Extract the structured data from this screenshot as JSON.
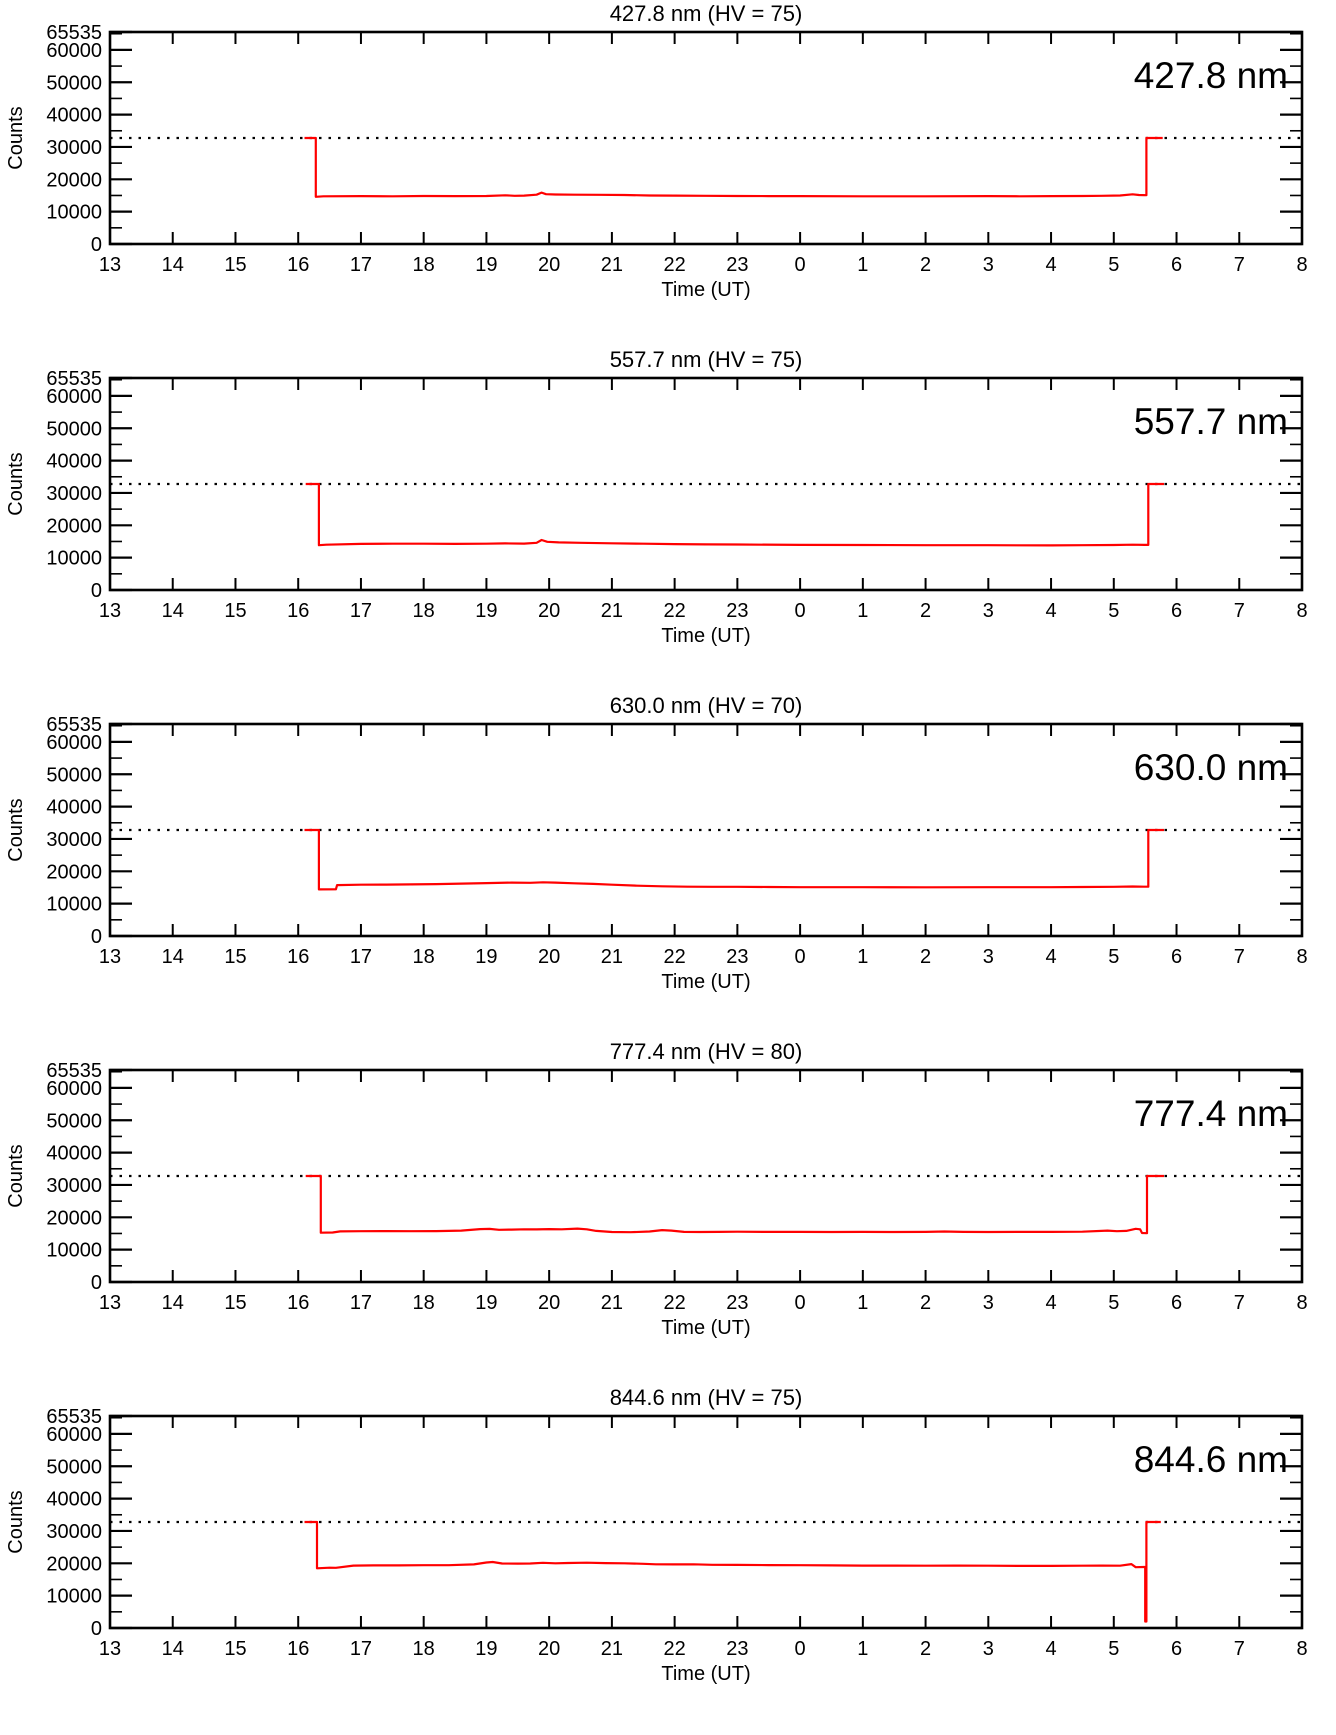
{
  "figure": {
    "ylabel": "Counts",
    "xlabel": "Time (UT)",
    "ylim": [
      0,
      65535
    ],
    "y_major_ticks": [
      0,
      10000,
      20000,
      30000,
      40000,
      50000,
      60000,
      65535
    ],
    "y_major_tick_labels": [
      "0",
      "10000",
      "20000",
      "30000",
      "40000",
      "50000",
      "60000",
      "65535"
    ],
    "y_minor_step": 5000,
    "x_hours": [
      13,
      14,
      15,
      16,
      17,
      18,
      19,
      20,
      21,
      22,
      23,
      24,
      25,
      26,
      27,
      28,
      29,
      30,
      31,
      32
    ],
    "x_tick_labels": [
      "13",
      "14",
      "15",
      "16",
      "17",
      "18",
      "19",
      "20",
      "21",
      "22",
      "23",
      "0",
      "1",
      "2",
      "3",
      "4",
      "5",
      "6",
      "7",
      "8"
    ],
    "dashed_line_y": 32768,
    "line_color": "#ff0000",
    "axis_color": "#000000",
    "grid": false,
    "legend": "none"
  },
  "chart_data": [
    {
      "type": "line",
      "title": "427.8 nm (HV = 75)",
      "wavelength_label": "427.8 nm",
      "hv": 75,
      "xlabel": "Time (UT)",
      "ylabel": "Counts",
      "ylim": [
        0,
        65535
      ],
      "dashed_line_y": 32768,
      "series": [
        {
          "name": "counts",
          "color": "#ff0000",
          "points": [
            [
              16.1,
              32768
            ],
            [
              16.28,
              32768
            ],
            [
              16.28,
              14600
            ],
            [
              16.4,
              14750
            ],
            [
              17.0,
              14800
            ],
            [
              17.5,
              14750
            ],
            [
              18.0,
              14850
            ],
            [
              18.5,
              14800
            ],
            [
              19.0,
              14850
            ],
            [
              19.3,
              15050
            ],
            [
              19.45,
              14900
            ],
            [
              19.6,
              14950
            ],
            [
              19.8,
              15250
            ],
            [
              19.88,
              15900
            ],
            [
              19.95,
              15400
            ],
            [
              20.1,
              15300
            ],
            [
              20.4,
              15250
            ],
            [
              20.8,
              15200
            ],
            [
              21.2,
              15150
            ],
            [
              21.6,
              15000
            ],
            [
              22.0,
              14950
            ],
            [
              22.5,
              14900
            ],
            [
              23.0,
              14850
            ],
            [
              23.5,
              14800
            ],
            [
              24.0,
              14800
            ],
            [
              25.0,
              14750
            ],
            [
              26.0,
              14750
            ],
            [
              27.0,
              14800
            ],
            [
              27.5,
              14750
            ],
            [
              28.0,
              14800
            ],
            [
              28.5,
              14850
            ],
            [
              28.8,
              14900
            ],
            [
              29.1,
              15000
            ],
            [
              29.3,
              15350
            ],
            [
              29.4,
              15150
            ],
            [
              29.52,
              15100
            ],
            [
              29.52,
              32768
            ],
            [
              29.78,
              32768
            ]
          ]
        }
      ]
    },
    {
      "type": "line",
      "title": "557.7 nm (HV = 75)",
      "wavelength_label": "557.7 nm",
      "hv": 75,
      "xlabel": "Time (UT)",
      "ylabel": "Counts",
      "ylim": [
        0,
        65535
      ],
      "dashed_line_y": 32768,
      "series": [
        {
          "name": "counts",
          "color": "#ff0000",
          "points": [
            [
              16.12,
              32768
            ],
            [
              16.33,
              32768
            ],
            [
              16.33,
              13850
            ],
            [
              16.45,
              14000
            ],
            [
              17.0,
              14250
            ],
            [
              17.5,
              14300
            ],
            [
              18.0,
              14300
            ],
            [
              18.5,
              14250
            ],
            [
              19.0,
              14300
            ],
            [
              19.3,
              14400
            ],
            [
              19.6,
              14350
            ],
            [
              19.8,
              14600
            ],
            [
              19.88,
              15450
            ],
            [
              19.97,
              14900
            ],
            [
              20.15,
              14700
            ],
            [
              20.5,
              14600
            ],
            [
              21.0,
              14450
            ],
            [
              21.5,
              14300
            ],
            [
              22.0,
              14200
            ],
            [
              22.5,
              14100
            ],
            [
              23.0,
              14050
            ],
            [
              24.0,
              13950
            ],
            [
              25.0,
              13900
            ],
            [
              26.0,
              13850
            ],
            [
              27.0,
              13850
            ],
            [
              28.0,
              13800
            ],
            [
              28.5,
              13850
            ],
            [
              29.0,
              13900
            ],
            [
              29.3,
              14000
            ],
            [
              29.5,
              13950
            ],
            [
              29.55,
              13950
            ],
            [
              29.55,
              32768
            ],
            [
              29.8,
              32768
            ]
          ]
        }
      ]
    },
    {
      "type": "line",
      "title": "630.0 nm (HV = 70)",
      "wavelength_label": "630.0 nm",
      "hv": 70,
      "xlabel": "Time (UT)",
      "ylabel": "Counts",
      "ylim": [
        0,
        65535
      ],
      "dashed_line_y": 32768,
      "series": [
        {
          "name": "counts",
          "color": "#ff0000",
          "points": [
            [
              16.1,
              32768
            ],
            [
              16.33,
              32768
            ],
            [
              16.33,
              14400
            ],
            [
              16.6,
              14450
            ],
            [
              16.62,
              15750
            ],
            [
              17.0,
              15850
            ],
            [
              17.4,
              15900
            ],
            [
              17.8,
              15950
            ],
            [
              18.2,
              16050
            ],
            [
              18.6,
              16200
            ],
            [
              19.0,
              16350
            ],
            [
              19.4,
              16500
            ],
            [
              19.7,
              16450
            ],
            [
              19.9,
              16600
            ],
            [
              20.1,
              16500
            ],
            [
              20.4,
              16300
            ],
            [
              20.7,
              16100
            ],
            [
              21.0,
              15850
            ],
            [
              21.4,
              15550
            ],
            [
              21.8,
              15350
            ],
            [
              22.2,
              15250
            ],
            [
              22.6,
              15200
            ],
            [
              23.0,
              15200
            ],
            [
              23.5,
              15150
            ],
            [
              24.0,
              15100
            ],
            [
              25.0,
              15100
            ],
            [
              26.0,
              15050
            ],
            [
              27.0,
              15100
            ],
            [
              28.0,
              15100
            ],
            [
              28.5,
              15150
            ],
            [
              29.0,
              15200
            ],
            [
              29.3,
              15300
            ],
            [
              29.5,
              15250
            ],
            [
              29.55,
              15250
            ],
            [
              29.55,
              32768
            ],
            [
              29.8,
              32768
            ]
          ]
        }
      ]
    },
    {
      "type": "line",
      "title": "777.4 nm (HV = 80)",
      "wavelength_label": "777.4 nm",
      "hv": 80,
      "xlabel": "Time (UT)",
      "ylabel": "Counts",
      "ylim": [
        0,
        65535
      ],
      "dashed_line_y": 32768,
      "series": [
        {
          "name": "counts",
          "color": "#ff0000",
          "points": [
            [
              16.12,
              32768
            ],
            [
              16.36,
              32768
            ],
            [
              16.36,
              15250
            ],
            [
              16.55,
              15300
            ],
            [
              16.67,
              15650
            ],
            [
              17.0,
              15700
            ],
            [
              17.4,
              15750
            ],
            [
              17.8,
              15700
            ],
            [
              18.2,
              15750
            ],
            [
              18.6,
              15900
            ],
            [
              18.9,
              16350
            ],
            [
              19.05,
              16400
            ],
            [
              19.2,
              16150
            ],
            [
              19.4,
              16200
            ],
            [
              19.6,
              16300
            ],
            [
              19.8,
              16250
            ],
            [
              20.0,
              16350
            ],
            [
              20.2,
              16300
            ],
            [
              20.45,
              16500
            ],
            [
              20.6,
              16300
            ],
            [
              20.75,
              15800
            ],
            [
              21.0,
              15450
            ],
            [
              21.3,
              15400
            ],
            [
              21.6,
              15600
            ],
            [
              21.8,
              16050
            ],
            [
              21.95,
              15900
            ],
            [
              22.15,
              15500
            ],
            [
              22.4,
              15450
            ],
            [
              22.7,
              15500
            ],
            [
              23.0,
              15550
            ],
            [
              23.5,
              15500
            ],
            [
              24.0,
              15500
            ],
            [
              24.5,
              15450
            ],
            [
              25.0,
              15500
            ],
            [
              25.5,
              15450
            ],
            [
              26.0,
              15500
            ],
            [
              26.3,
              15600
            ],
            [
              26.6,
              15500
            ],
            [
              27.0,
              15450
            ],
            [
              27.5,
              15500
            ],
            [
              28.0,
              15500
            ],
            [
              28.5,
              15550
            ],
            [
              28.9,
              15900
            ],
            [
              29.05,
              15700
            ],
            [
              29.2,
              15800
            ],
            [
              29.35,
              16450
            ],
            [
              29.42,
              16300
            ],
            [
              29.45,
              15150
            ],
            [
              29.53,
              15100
            ],
            [
              29.53,
              32768
            ],
            [
              29.8,
              32768
            ]
          ]
        }
      ]
    },
    {
      "type": "line",
      "title": "844.6 nm (HV = 75)",
      "wavelength_label": "844.6 nm",
      "hv": 75,
      "xlabel": "Time (UT)",
      "ylabel": "Counts",
      "ylim": [
        0,
        65535
      ],
      "dashed_line_y": 32768,
      "series": [
        {
          "name": "counts",
          "color": "#ff0000",
          "points": [
            [
              16.1,
              32768
            ],
            [
              16.3,
              32768
            ],
            [
              16.3,
              18450
            ],
            [
              16.5,
              18650
            ],
            [
              16.6,
              18600
            ],
            [
              16.88,
              19300
            ],
            [
              17.2,
              19350
            ],
            [
              17.6,
              19350
            ],
            [
              18.0,
              19400
            ],
            [
              18.4,
              19400
            ],
            [
              18.8,
              19650
            ],
            [
              19.0,
              20250
            ],
            [
              19.1,
              20400
            ],
            [
              19.25,
              19950
            ],
            [
              19.5,
              19900
            ],
            [
              19.7,
              19950
            ],
            [
              19.9,
              20150
            ],
            [
              20.1,
              20000
            ],
            [
              20.3,
              20100
            ],
            [
              20.6,
              20200
            ],
            [
              20.9,
              20050
            ],
            [
              21.2,
              20000
            ],
            [
              21.5,
              19850
            ],
            [
              21.7,
              19700
            ],
            [
              22.0,
              19650
            ],
            [
              22.3,
              19700
            ],
            [
              22.6,
              19550
            ],
            [
              23.0,
              19500
            ],
            [
              23.5,
              19450
            ],
            [
              24.0,
              19400
            ],
            [
              24.5,
              19350
            ],
            [
              25.0,
              19300
            ],
            [
              25.5,
              19300
            ],
            [
              26.0,
              19250
            ],
            [
              26.5,
              19300
            ],
            [
              27.0,
              19250
            ],
            [
              27.5,
              19200
            ],
            [
              28.0,
              19200
            ],
            [
              28.5,
              19250
            ],
            [
              28.8,
              19300
            ],
            [
              29.1,
              19250
            ],
            [
              29.28,
              19750
            ],
            [
              29.35,
              18800
            ],
            [
              29.48,
              18850
            ],
            [
              29.5,
              18850
            ],
            [
              29.5,
              2000
            ],
            [
              29.52,
              2000
            ],
            [
              29.52,
              32768
            ],
            [
              29.75,
              32768
            ]
          ]
        }
      ]
    }
  ]
}
